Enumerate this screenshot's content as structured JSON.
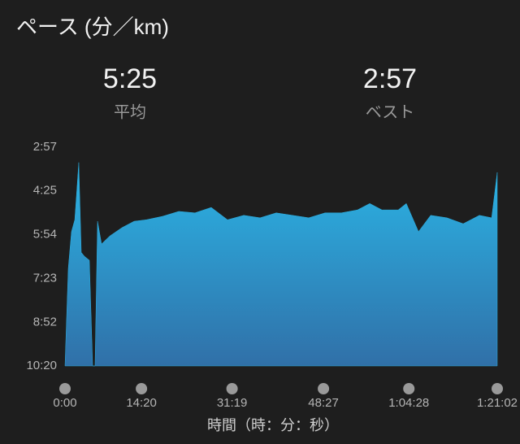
{
  "chart_data": {
    "type": "area",
    "title": "ペース (分／km)",
    "summary": [
      {
        "value": "5:25",
        "label": "平均"
      },
      {
        "value": "2:57",
        "label": "ベスト"
      }
    ],
    "x_label": "時間（時：分：秒）",
    "x": [
      0,
      37,
      73,
      110,
      155,
      183,
      219,
      274,
      311,
      338,
      366,
      411,
      503,
      640,
      777,
      914,
      1097,
      1280,
      1462,
      1645,
      1828,
      2011,
      2194,
      2376,
      2559,
      2742,
      2925,
      3108,
      3290,
      3428,
      3565,
      3748,
      3839,
      3976,
      4113,
      4296,
      4479,
      4661,
      4799,
      4862
    ],
    "series": [
      {
        "color": "#29aee0",
        "values": [
          620,
          422,
          348,
          324,
          208,
          390,
          398,
          406,
          620,
          620,
          327,
          373,
          357,
          340,
          327,
          324,
          317,
          307,
          310,
          299,
          324,
          315,
          320,
          310,
          315,
          320,
          310,
          310,
          304,
          291,
          304,
          304,
          291,
          348,
          315,
          320,
          332,
          315,
          320,
          228
        ]
      }
    ],
    "xlim": [
      0,
      4862
    ],
    "xticks": [
      {
        "value": 0,
        "label": "0:00"
      },
      {
        "value": 860,
        "label": "14:20"
      },
      {
        "value": 1879,
        "label": "31:19"
      },
      {
        "value": 2907,
        "label": "48:27"
      },
      {
        "value": 3868,
        "label": "1:04:28"
      },
      {
        "value": 4862,
        "label": "1:21:02"
      }
    ],
    "ylim": [
      177,
      620
    ],
    "y_inverted": true,
    "yticks": [
      {
        "value": 177,
        "label": "2:57"
      },
      {
        "value": 265,
        "label": "4:25"
      },
      {
        "value": 354,
        "label": "5:54"
      },
      {
        "value": 443,
        "label": "7:23"
      },
      {
        "value": 532,
        "label": "8:52"
      },
      {
        "value": 620,
        "label": "10:20"
      }
    ]
  }
}
